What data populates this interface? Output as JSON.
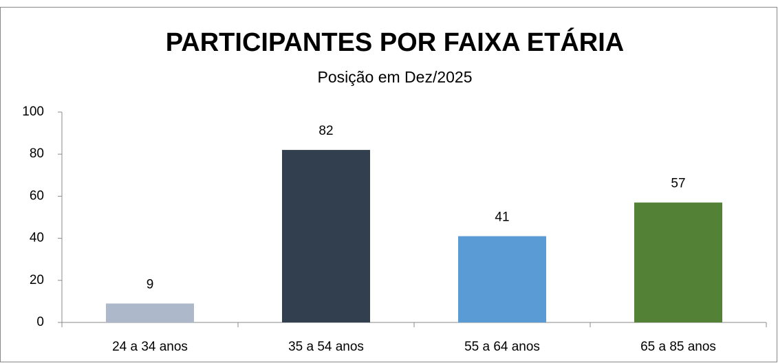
{
  "chart_data": {
    "type": "bar",
    "title": "PARTICIPANTES POR FAIXA ETÁRIA",
    "subtitle": "Posição em Dez/2025",
    "categories": [
      "24 a 34 anos",
      "35 a 54 anos",
      "55 a 64 anos",
      "65 a 85 anos"
    ],
    "values": [
      9,
      82,
      41,
      57
    ],
    "colors": [
      "#adb9ca",
      "#323f4f",
      "#5b9bd5",
      "#538135"
    ],
    "ylim": [
      0,
      100
    ],
    "yticks": [
      0,
      20,
      40,
      60,
      80,
      100
    ],
    "grid": false
  }
}
